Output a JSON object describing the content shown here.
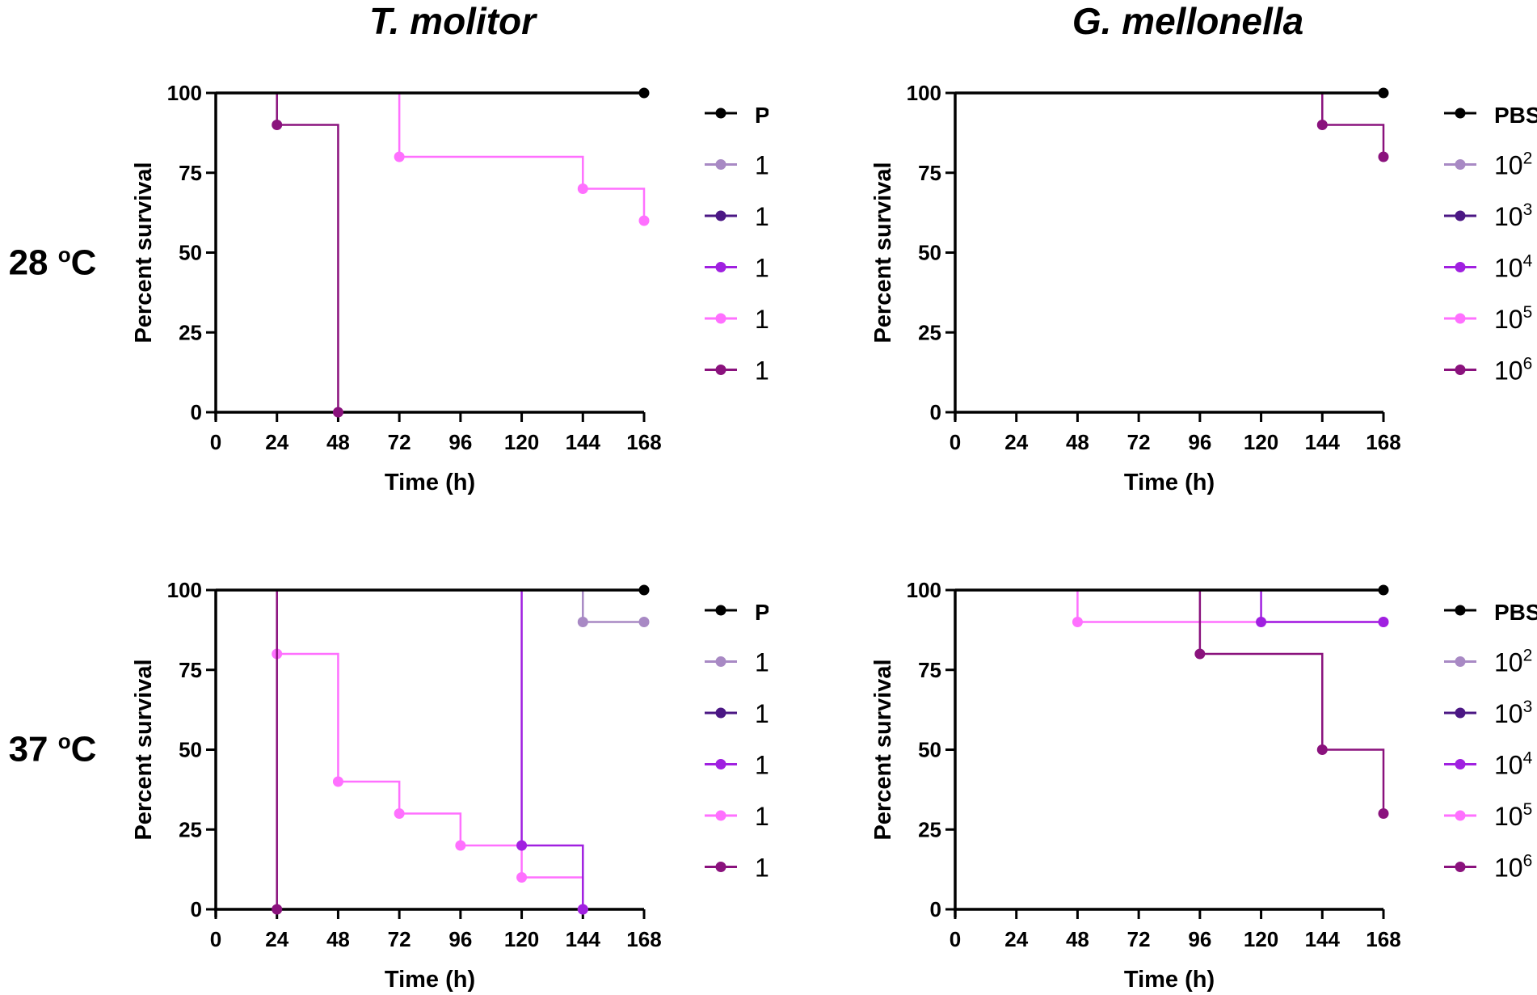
{
  "titles": {
    "left": "T. molitor",
    "right": "G. mellonella"
  },
  "rows": [
    {
      "label_base": "28 ",
      "label_sup": "o",
      "label_unit": "C"
    },
    {
      "label_base": "37 ",
      "label_sup": "o",
      "label_unit": "C"
    }
  ],
  "legend": [
    {
      "base": "PBS",
      "sup": "",
      "color": "#000000"
    },
    {
      "base": "10",
      "sup": "2",
      "color": "#a889c4"
    },
    {
      "base": "10",
      "sup": "3",
      "color": "#4b1784"
    },
    {
      "base": "10",
      "sup": "4",
      "color": "#a020e0"
    },
    {
      "base": "10",
      "sup": "5",
      "color": "#ff70ff"
    },
    {
      "base": "10",
      "sup": "6",
      "color": "#8a127d"
    }
  ],
  "chart_data": [
    {
      "type": "line",
      "subtype": "kaplan-meier",
      "title": "T. molitor",
      "condition": "28 oC",
      "xlabel": "Time (h)",
      "ylabel": "Percent survival",
      "xlim": [
        0,
        168
      ],
      "ylim": [
        0,
        100
      ],
      "xticks": [
        0,
        24,
        48,
        72,
        96,
        120,
        144,
        168
      ],
      "yticks": [
        0,
        25,
        50,
        75,
        100
      ],
      "series": [
        {
          "name": "PBS",
          "steps": [
            [
              0,
              100
            ],
            [
              168,
              100
            ]
          ],
          "markers": [
            [
              168,
              100
            ]
          ]
        },
        {
          "name": "10^2",
          "steps": [
            [
              0,
              100
            ],
            [
              168,
              100
            ]
          ],
          "markers": []
        },
        {
          "name": "10^3",
          "steps": [
            [
              0,
              100
            ],
            [
              168,
              100
            ]
          ],
          "markers": []
        },
        {
          "name": "10^4",
          "steps": [
            [
              0,
              100
            ],
            [
              168,
              100
            ]
          ],
          "markers": []
        },
        {
          "name": "10^5",
          "steps": [
            [
              0,
              100
            ],
            [
              72,
              80
            ],
            [
              144,
              70
            ],
            [
              168,
              60
            ]
          ],
          "markers": [
            [
              72,
              80
            ],
            [
              144,
              70
            ],
            [
              168,
              60
            ]
          ]
        },
        {
          "name": "10^6",
          "steps": [
            [
              0,
              100
            ],
            [
              24,
              90
            ],
            [
              48,
              0
            ]
          ],
          "markers": [
            [
              24,
              90
            ],
            [
              48,
              0
            ]
          ]
        }
      ]
    },
    {
      "type": "line",
      "subtype": "kaplan-meier",
      "title": "G. mellonella",
      "condition": "28 oC",
      "xlabel": "Time (h)",
      "ylabel": "Percent survival",
      "xlim": [
        0,
        168
      ],
      "ylim": [
        0,
        100
      ],
      "xticks": [
        0,
        24,
        48,
        72,
        96,
        120,
        144,
        168
      ],
      "yticks": [
        0,
        25,
        50,
        75,
        100
      ],
      "series": [
        {
          "name": "PBS",
          "steps": [
            [
              0,
              100
            ],
            [
              168,
              100
            ]
          ],
          "markers": [
            [
              168,
              100
            ]
          ]
        },
        {
          "name": "10^2",
          "steps": [
            [
              0,
              100
            ],
            [
              168,
              100
            ]
          ],
          "markers": []
        },
        {
          "name": "10^3",
          "steps": [
            [
              0,
              100
            ],
            [
              168,
              100
            ]
          ],
          "markers": []
        },
        {
          "name": "10^4",
          "steps": [
            [
              0,
              100
            ],
            [
              168,
              100
            ]
          ],
          "markers": []
        },
        {
          "name": "10^5",
          "steps": [
            [
              0,
              100
            ],
            [
              168,
              100
            ]
          ],
          "markers": []
        },
        {
          "name": "10^6",
          "steps": [
            [
              0,
              100
            ],
            [
              144,
              90
            ],
            [
              168,
              80
            ]
          ],
          "markers": [
            [
              144,
              90
            ],
            [
              168,
              80
            ]
          ]
        }
      ]
    },
    {
      "type": "line",
      "subtype": "kaplan-meier",
      "title": "T. molitor",
      "condition": "37 oC",
      "xlabel": "Time (h)",
      "ylabel": "Percent survival",
      "xlim": [
        0,
        168
      ],
      "ylim": [
        0,
        100
      ],
      "xticks": [
        0,
        24,
        48,
        72,
        96,
        120,
        144,
        168
      ],
      "yticks": [
        0,
        25,
        50,
        75,
        100
      ],
      "series": [
        {
          "name": "PBS",
          "steps": [
            [
              0,
              100
            ],
            [
              168,
              100
            ]
          ],
          "markers": [
            [
              168,
              100
            ]
          ]
        },
        {
          "name": "10^2",
          "steps": [
            [
              0,
              100
            ],
            [
              144,
              90
            ],
            [
              168,
              90
            ]
          ],
          "markers": [
            [
              144,
              90
            ],
            [
              168,
              90
            ]
          ]
        },
        {
          "name": "10^3",
          "steps": [
            [
              0,
              100
            ],
            [
              168,
              100
            ]
          ],
          "markers": []
        },
        {
          "name": "10^4",
          "steps": [
            [
              0,
              100
            ],
            [
              120,
              20
            ],
            [
              144,
              0
            ]
          ],
          "markers": [
            [
              120,
              20
            ],
            [
              144,
              0
            ]
          ]
        },
        {
          "name": "10^5",
          "steps": [
            [
              0,
              100
            ],
            [
              24,
              80
            ],
            [
              48,
              40
            ],
            [
              72,
              30
            ],
            [
              96,
              20
            ],
            [
              120,
              10
            ],
            [
              144,
              0
            ]
          ],
          "markers": [
            [
              24,
              80
            ],
            [
              48,
              40
            ],
            [
              72,
              30
            ],
            [
              96,
              20
            ],
            [
              120,
              10
            ],
            [
              144,
              0
            ]
          ]
        },
        {
          "name": "10^6",
          "steps": [
            [
              0,
              100
            ],
            [
              24,
              0
            ]
          ],
          "markers": [
            [
              24,
              0
            ]
          ]
        }
      ]
    },
    {
      "type": "line",
      "subtype": "kaplan-meier",
      "title": "G. mellonella",
      "condition": "37 oC",
      "xlabel": "Time (h)",
      "ylabel": "Percent survival",
      "xlim": [
        0,
        168
      ],
      "ylim": [
        0,
        100
      ],
      "xticks": [
        0,
        24,
        48,
        72,
        96,
        120,
        144,
        168
      ],
      "yticks": [
        0,
        25,
        50,
        75,
        100
      ],
      "series": [
        {
          "name": "PBS",
          "steps": [
            [
              0,
              100
            ],
            [
              168,
              100
            ]
          ],
          "markers": [
            [
              168,
              100
            ]
          ]
        },
        {
          "name": "10^2",
          "steps": [
            [
              0,
              100
            ],
            [
              168,
              100
            ]
          ],
          "markers": []
        },
        {
          "name": "10^3",
          "steps": [
            [
              0,
              100
            ],
            [
              168,
              100
            ]
          ],
          "markers": []
        },
        {
          "name": "10^4",
          "steps": [
            [
              0,
              100
            ],
            [
              120,
              90
            ],
            [
              168,
              90
            ]
          ],
          "markers": [
            [
              120,
              90
            ],
            [
              168,
              90
            ]
          ]
        },
        {
          "name": "10^5",
          "steps": [
            [
              0,
              100
            ],
            [
              48,
              90
            ],
            [
              168,
              90
            ]
          ],
          "markers": [
            [
              48,
              90
            ],
            [
              168,
              90
            ]
          ]
        },
        {
          "name": "10^6",
          "steps": [
            [
              0,
              100
            ],
            [
              96,
              80
            ],
            [
              144,
              50
            ],
            [
              168,
              30
            ]
          ],
          "markers": [
            [
              96,
              80
            ],
            [
              144,
              50
            ],
            [
              168,
              30
            ]
          ]
        }
      ]
    }
  ]
}
